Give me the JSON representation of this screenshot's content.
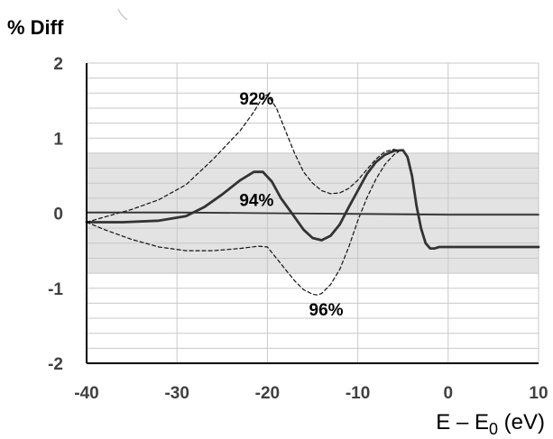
{
  "chart_data": {
    "type": "line",
    "ylabel": "% Diff",
    "xlabel_main": "E – E",
    "xlabel_sub": "0",
    "xlabel_unit": " (eV)",
    "xlim": [
      -40,
      10
    ],
    "ylim": [
      -2,
      2
    ],
    "x_ticks": [
      -40,
      -30,
      -20,
      -10,
      0,
      10
    ],
    "y_ticks": [
      2,
      1,
      0,
      -1,
      -2
    ],
    "x_tick_labels": [
      "-40",
      "-30",
      "-20",
      "-10",
      "0",
      "10"
    ],
    "y_tick_labels": [
      "2",
      "1",
      "0",
      "-1",
      "-2"
    ],
    "band": {
      "from": -0.8,
      "to": 0.8,
      "color": "#e3e3e3"
    },
    "grid": true,
    "colors": {
      "grid": "#c8c8c8",
      "axis": "#000000",
      "band": "#e3e3e3",
      "line": "#333333"
    },
    "series": [
      {
        "style": "solid-thick",
        "points": [
          [
            -40,
            -0.12
          ],
          [
            -36,
            -0.12
          ],
          [
            -32,
            -0.1
          ],
          [
            -29,
            -0.04
          ],
          [
            -27,
            0.08
          ],
          [
            -25,
            0.25
          ],
          [
            -23,
            0.44
          ],
          [
            -21.5,
            0.55
          ],
          [
            -20.5,
            0.55
          ],
          [
            -19.5,
            0.42
          ],
          [
            -18.5,
            0.2
          ],
          [
            -17,
            -0.05
          ],
          [
            -16,
            -0.22
          ],
          [
            -15,
            -0.33
          ],
          [
            -14,
            -0.36
          ],
          [
            -13,
            -0.3
          ],
          [
            -12,
            -0.15
          ],
          [
            -11,
            0.08
          ],
          [
            -10,
            0.3
          ],
          [
            -9,
            0.52
          ],
          [
            -8,
            0.68
          ],
          [
            -7,
            0.78
          ],
          [
            -6,
            0.83
          ],
          [
            -5,
            0.84
          ],
          [
            -4.5,
            0.75
          ],
          [
            -4,
            0.5
          ],
          [
            -3.5,
            0.1
          ],
          [
            -3,
            -0.2
          ],
          [
            -2.5,
            -0.4
          ],
          [
            -2,
            -0.47
          ],
          [
            -1.5,
            -0.47
          ],
          [
            -1,
            -0.45
          ],
          [
            10,
            -0.45
          ]
        ]
      },
      {
        "style": "dashed",
        "points": [
          [
            -40,
            -0.12
          ],
          [
            -38,
            -0.05
          ],
          [
            -35,
            0.05
          ],
          [
            -32,
            0.18
          ],
          [
            -29,
            0.38
          ],
          [
            -26,
            0.72
          ],
          [
            -23,
            1.1
          ],
          [
            -21.5,
            1.35
          ],
          [
            -20.5,
            1.55
          ],
          [
            -20,
            1.58
          ],
          [
            -19,
            1.4
          ],
          [
            -18,
            1.1
          ],
          [
            -17,
            0.8
          ],
          [
            -16,
            0.55
          ],
          [
            -15,
            0.4
          ],
          [
            -14,
            0.3
          ],
          [
            -13,
            0.26
          ],
          [
            -12,
            0.27
          ],
          [
            -11,
            0.33
          ],
          [
            -10,
            0.44
          ],
          [
            -9,
            0.58
          ],
          [
            -8,
            0.72
          ],
          [
            -7,
            0.82
          ],
          [
            -6,
            0.85
          ],
          [
            -5.5,
            0.84
          ]
        ]
      },
      {
        "style": "dashed",
        "points": [
          [
            -40,
            -0.12
          ],
          [
            -38,
            -0.22
          ],
          [
            -35,
            -0.35
          ],
          [
            -32,
            -0.45
          ],
          [
            -29,
            -0.5
          ],
          [
            -26,
            -0.5
          ],
          [
            -23,
            -0.47
          ],
          [
            -21,
            -0.44
          ],
          [
            -20,
            -0.45
          ],
          [
            -19,
            -0.6
          ],
          [
            -18,
            -0.75
          ],
          [
            -17,
            -0.9
          ],
          [
            -16,
            -1.02
          ],
          [
            -15,
            -1.08
          ],
          [
            -14.5,
            -1.09
          ],
          [
            -14,
            -1.07
          ],
          [
            -13,
            -0.95
          ],
          [
            -12,
            -0.75
          ],
          [
            -11,
            -0.45
          ],
          [
            -10,
            -0.1
          ],
          [
            -9,
            0.2
          ],
          [
            -8,
            0.45
          ],
          [
            -7,
            0.65
          ],
          [
            -6,
            0.78
          ],
          [
            -5.5,
            0.82
          ]
        ]
      },
      {
        "style": "solid-thin",
        "points": [
          [
            -40,
            0.01
          ],
          [
            -30,
            0.01
          ],
          [
            -20,
            0.0
          ],
          [
            -10,
            -0.01
          ],
          [
            0,
            -0.02
          ],
          [
            10,
            -0.02
          ]
        ]
      }
    ],
    "annotations": [
      {
        "text": "92%",
        "x": -21.2,
        "y": 1.53
      },
      {
        "text": "94%",
        "x": -21.2,
        "y": 0.18
      },
      {
        "text": "96%",
        "x": -13.5,
        "y": -1.28
      }
    ]
  }
}
